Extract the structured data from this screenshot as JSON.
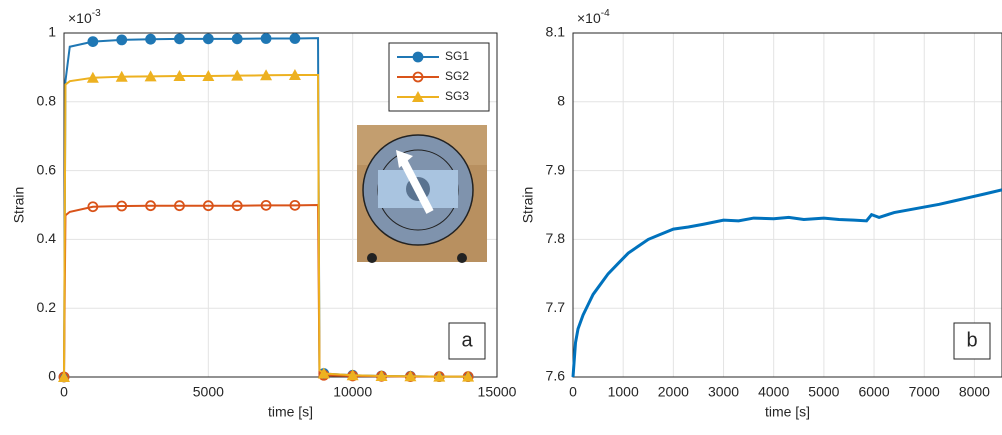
{
  "chart_data": [
    {
      "type": "line",
      "xlabel": "time [s]",
      "ylabel": "Strain",
      "y_scale": {
        "base": "×10",
        "exponent": "-3"
      },
      "xlim": [
        0,
        15000
      ],
      "xticks": [
        0,
        5000,
        10000,
        15000
      ],
      "ylim": [
        0,
        1
      ],
      "yticks": [
        0,
        0.2,
        0.4,
        0.6,
        0.8,
        1
      ],
      "grid": true,
      "legend": "upper right",
      "panel_label": "a",
      "x": [
        0,
        50,
        200,
        1000,
        2000,
        3000,
        4000,
        5000,
        6000,
        7000,
        8000,
        8800,
        8850,
        9000,
        10000,
        11000,
        12000,
        13000,
        14000
      ],
      "series": [
        {
          "name": "SG1",
          "color": "#1f77b4",
          "marker": "circle",
          "values": [
            0,
            0.86,
            0.96,
            0.975,
            0.98,
            0.982,
            0.983,
            0.983,
            0.983,
            0.984,
            0.984,
            0.985,
            0.02,
            0.01,
            0.005,
            0.003,
            0.002,
            0.001,
            0.001
          ]
        },
        {
          "name": "SG2",
          "color": "#d95319",
          "marker": "open-circle",
          "values": [
            0,
            0.47,
            0.48,
            0.495,
            0.497,
            0.498,
            0.498,
            0.498,
            0.498,
            0.499,
            0.499,
            0.5,
            0.01,
            0.005,
            0.003,
            0.002,
            0.001,
            0.001,
            0.001
          ]
        },
        {
          "name": "SG3",
          "color": "#edb120",
          "marker": "triangle",
          "values": [
            0,
            0.85,
            0.86,
            0.87,
            0.873,
            0.874,
            0.875,
            0.875,
            0.876,
            0.877,
            0.878,
            0.878,
            0.02,
            0.01,
            0.005,
            0.003,
            0.002,
            0.001,
            0.001
          ]
        }
      ]
    },
    {
      "type": "line",
      "xlabel": "time [s]",
      "ylabel": "Strain",
      "y_scale": {
        "base": "×10",
        "exponent": "-4"
      },
      "xlim": [
        0,
        8550
      ],
      "xticks": [
        0,
        1000,
        2000,
        3000,
        4000,
        5000,
        6000,
        7000,
        8000
      ],
      "ylim": [
        7.6,
        8.1
      ],
      "yticks": [
        7.6,
        7.7,
        7.8,
        7.9,
        8,
        8.1
      ],
      "grid": true,
      "panel_label": "b",
      "x": [
        0,
        50,
        100,
        200,
        300,
        400,
        500,
        700,
        900,
        1100,
        1300,
        1500,
        1700,
        2000,
        2300,
        2600,
        3000,
        3300,
        3600,
        4000,
        4300,
        4600,
        5000,
        5300,
        5600,
        5850,
        5950,
        6100,
        6400,
        6700,
        7000,
        7300,
        7600,
        7900,
        8200,
        8550
      ],
      "values": [
        7.6,
        7.65,
        7.67,
        7.69,
        7.705,
        7.72,
        7.73,
        7.75,
        7.765,
        7.78,
        7.79,
        7.8,
        7.806,
        7.815,
        7.818,
        7.822,
        7.828,
        7.827,
        7.831,
        7.83,
        7.832,
        7.829,
        7.831,
        7.829,
        7.828,
        7.827,
        7.836,
        7.832,
        7.839,
        7.843,
        7.847,
        7.851,
        7.856,
        7.861,
        7.866,
        7.872
      ],
      "color": "#0072bd"
    }
  ]
}
